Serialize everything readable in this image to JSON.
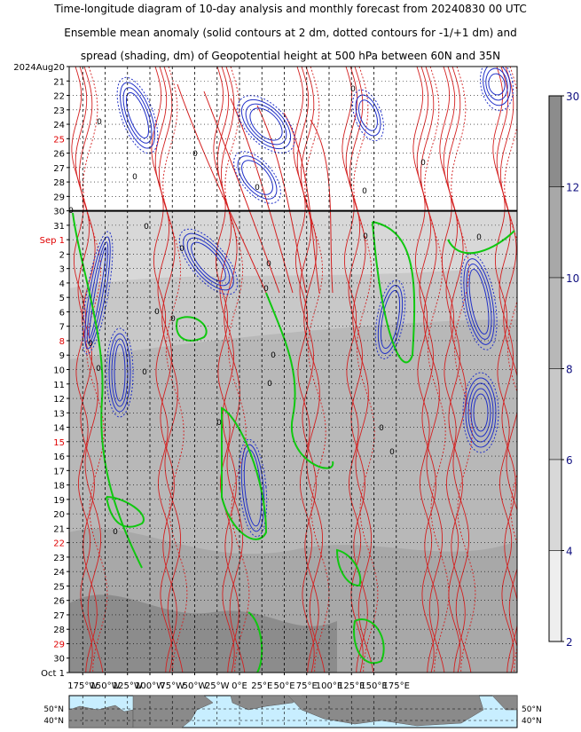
{
  "header": {
    "line1": "Time-longitude diagram of 10-day analysis and monthly forecast from 20240830 00 UTC",
    "line2": "Ensemble mean anomaly (solid contours at 2 dm, dotted contours for -1/+1 dm) and",
    "line3": "spread (shading, dm) of Geopotential height at 500 hPa between 60N and 35N"
  },
  "colors": {
    "positive_contour": "#d42020",
    "negative_contour": "#2030c8",
    "zero_contour": "#10c810",
    "spread_shading": "#9a9a9a",
    "weekend_label": "#e00000",
    "colorbar_label": "#101080",
    "map_ocean": "#c8eeff",
    "map_land": "#8a8a8a"
  },
  "chart_data": {
    "type": "heatmap",
    "xlabel": "",
    "ylabel": "",
    "analysis_forecast_boundary": "2024-08-30",
    "x_ticks": [
      "175°W",
      "150°W",
      "125°W",
      "100°W",
      "75°W",
      "50°W",
      "25°W",
      "0°E",
      "25°E",
      "50°E",
      "75°E",
      "100°E",
      "125°E",
      "150°E",
      "175°E"
    ],
    "y_ticks": [
      {
        "label": "2024Aug20",
        "weekend": false
      },
      {
        "label": "21",
        "weekend": false
      },
      {
        "label": "22",
        "weekend": false
      },
      {
        "label": "23",
        "weekend": false
      },
      {
        "label": "24",
        "weekend": false
      },
      {
        "label": "25",
        "weekend": true
      },
      {
        "label": "26",
        "weekend": false
      },
      {
        "label": "27",
        "weekend": false
      },
      {
        "label": "28",
        "weekend": false
      },
      {
        "label": "29",
        "weekend": false
      },
      {
        "label": "30",
        "weekend": false
      },
      {
        "label": "31",
        "weekend": false
      },
      {
        "label": "Sep  1",
        "weekend": true
      },
      {
        "label": "2",
        "weekend": false
      },
      {
        "label": "3",
        "weekend": false
      },
      {
        "label": "4",
        "weekend": false
      },
      {
        "label": "5",
        "weekend": false
      },
      {
        "label": "6",
        "weekend": false
      },
      {
        "label": "7",
        "weekend": false
      },
      {
        "label": "8",
        "weekend": true
      },
      {
        "label": "9",
        "weekend": false
      },
      {
        "label": "10",
        "weekend": false
      },
      {
        "label": "11",
        "weekend": false
      },
      {
        "label": "12",
        "weekend": false
      },
      {
        "label": "13",
        "weekend": false
      },
      {
        "label": "14",
        "weekend": false
      },
      {
        "label": "15",
        "weekend": true
      },
      {
        "label": "16",
        "weekend": false
      },
      {
        "label": "17",
        "weekend": false
      },
      {
        "label": "18",
        "weekend": false
      },
      {
        "label": "19",
        "weekend": false
      },
      {
        "label": "20",
        "weekend": false
      },
      {
        "label": "21",
        "weekend": false
      },
      {
        "label": "22",
        "weekend": true
      },
      {
        "label": "23",
        "weekend": false
      },
      {
        "label": "24",
        "weekend": false
      },
      {
        "label": "25",
        "weekend": false
      },
      {
        "label": "26",
        "weekend": false
      },
      {
        "label": "27",
        "weekend": false
      },
      {
        "label": "28",
        "weekend": false
      },
      {
        "label": "29",
        "weekend": true
      },
      {
        "label": "30",
        "weekend": false
      },
      {
        "label": "Oct  1",
        "weekend": false
      }
    ],
    "colorbar": {
      "ticks": [
        "2",
        "4",
        "6",
        "8",
        "10",
        "12",
        "30"
      ],
      "levels": [
        {
          "label": "2",
          "shade": "#eeeeee"
        },
        {
          "label": "4",
          "shade": "#d8d8d8"
        },
        {
          "label": "6",
          "shade": "#c8c8c8"
        },
        {
          "label": "8",
          "shade": "#b8b8b8"
        },
        {
          "label": "10",
          "shade": "#a8a8a8"
        },
        {
          "label": "12",
          "shade": "#8c8c8c"
        }
      ]
    },
    "map_lat_labels": [
      "50°N",
      "40°N"
    ],
    "contour_labels": [
      "0",
      "0",
      "0",
      "0",
      "0",
      "0",
      "0",
      "0",
      "0",
      "0",
      "0",
      "0",
      "0",
      "0",
      "0",
      "0",
      "0",
      "0",
      "0",
      "0",
      "0",
      "0",
      "0",
      "0",
      "0"
    ]
  }
}
